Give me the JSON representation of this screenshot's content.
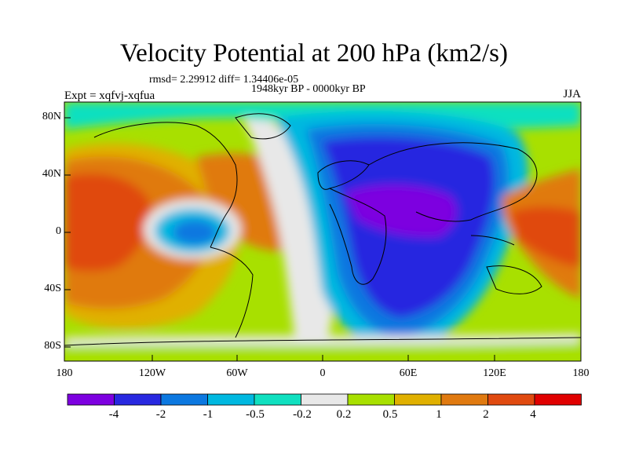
{
  "title": "Velocity Potential at 200 hPa (km2/s)",
  "stats": "rmsd= 2.29912 diff= 1.34406e-05",
  "period": "1948kyr BP - 0000kyr BP",
  "experiment": "Expt = xqfvj-xqfua",
  "season": "JJA",
  "lat_labels": [
    "80N",
    "40N",
    "0",
    "40S",
    "80S"
  ],
  "lon_labels": [
    "180",
    "120W",
    "60W",
    "0",
    "60E",
    "120E",
    "180"
  ],
  "colorbar": {
    "labels": [
      "-4",
      "-2",
      "-1",
      "-0.5",
      "-0.2",
      "0.2",
      "0.5",
      "1",
      "2",
      "4"
    ],
    "colors": [
      "#7d00e0",
      "#2828e0",
      "#0c78e0",
      "#00b8e0",
      "#10e0c0",
      "#e8e8e8",
      "#a8e000",
      "#e0b000",
      "#e07a10",
      "#e04a10",
      "#e00000"
    ]
  }
}
